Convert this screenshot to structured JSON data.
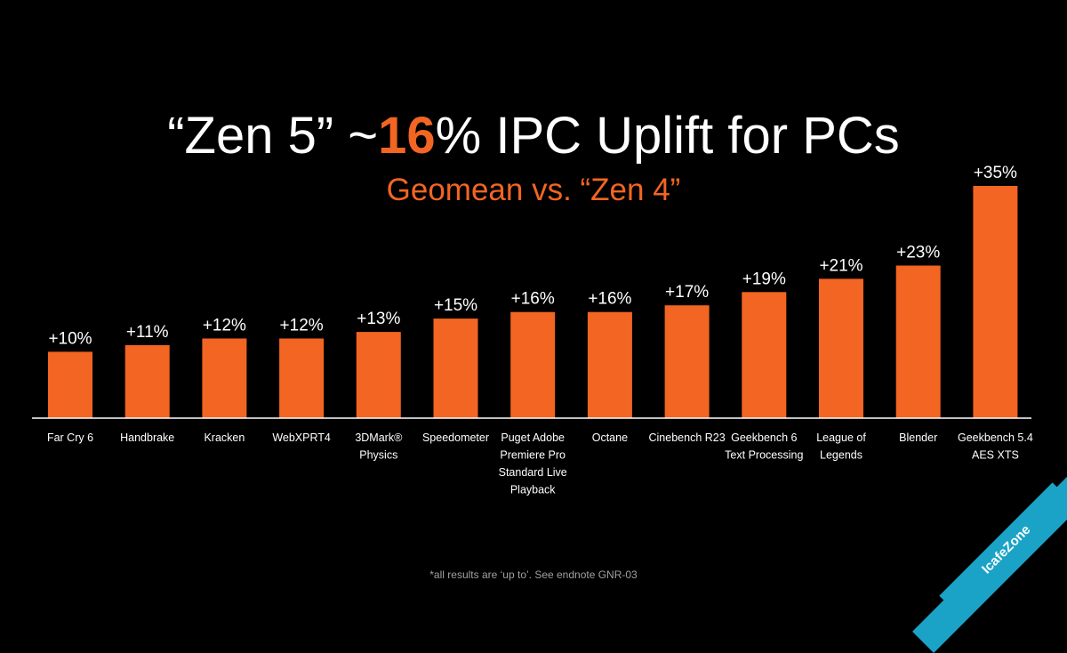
{
  "slide": {
    "title_prefix": "“Zen 5” ~",
    "title_highlight": "16",
    "title_suffix": "% IPC Uplift for PCs",
    "subtitle": "Geomean  vs. “Zen 4”",
    "footnote": "*all results are ‘up to’. See endnote GNR-03",
    "watermark": "IcafeZone"
  },
  "colors": {
    "background": "#000000",
    "bar": "#f26522",
    "text": "#ffffff",
    "accent": "#f26522",
    "axis": "#ffffff",
    "watermark": "#1aa3c7"
  },
  "chart_data": {
    "type": "bar",
    "title": "“Zen 5” ~16% IPC Uplift for PCs",
    "subtitle": "Geomean  vs. “Zen 4”",
    "categories": [
      [
        "Far Cry 6"
      ],
      [
        "Handbrake"
      ],
      [
        "Kracken"
      ],
      [
        "WebXPRT4"
      ],
      [
        "3DMark®",
        "Physics"
      ],
      [
        "Speedometer"
      ],
      [
        "Puget Adobe",
        "Premiere Pro",
        "Standard Live",
        "Playback"
      ],
      [
        "Octane"
      ],
      [
        "Cinebench R23"
      ],
      [
        "Geekbench 6",
        "Text Processing"
      ],
      [
        "League of",
        "Legends"
      ],
      [
        "Blender"
      ],
      [
        "Geekbench 5.4",
        "AES XTS"
      ]
    ],
    "values": [
      10,
      11,
      12,
      12,
      13,
      15,
      16,
      16,
      17,
      19,
      21,
      23,
      35
    ],
    "data_labels": [
      "+10%",
      "+11%",
      "+12%",
      "+12%",
      "+13%",
      "+15%",
      "+16%",
      "+16%",
      "+17%",
      "+19%",
      "+21%",
      "+23%",
      "+35%"
    ],
    "ylim": [
      0,
      35
    ],
    "grid": false,
    "legend": "none"
  }
}
